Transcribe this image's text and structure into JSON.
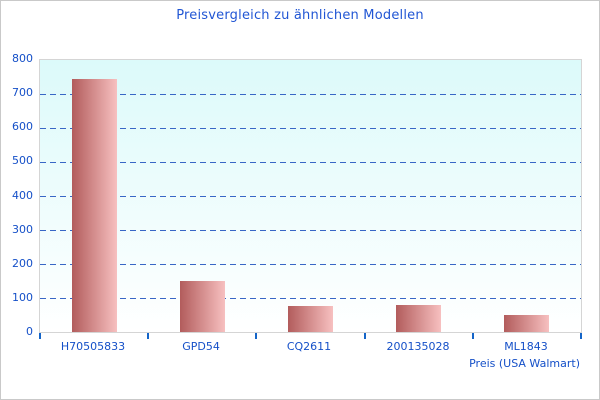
{
  "window": {
    "background": "#ffffff",
    "border_color": "#c9c9c9"
  },
  "chart_data": {
    "type": "bar",
    "title": "Preisvergleich zu ähnlichen Modellen",
    "categories": [
      "H70505833",
      "GPD54",
      "CQ2611",
      "200135028",
      "ML1843"
    ],
    "values": [
      745,
      150,
      75,
      80,
      50
    ],
    "xlabel": "Preis (USA Walmart)",
    "ylabel": "",
    "ylim": [
      0,
      800
    ],
    "ytick_step": 100,
    "ytick_labels": [
      "0",
      "100",
      "200",
      "300",
      "400",
      "500",
      "600",
      "700",
      "800"
    ],
    "grid": "horizontal-dashed",
    "legend": "none",
    "colors": {
      "title_text": "#2156d4",
      "axis_text": "#1550c8",
      "gridline": "#3866c6",
      "tick": "#1565c8",
      "plot_border": "#d5d5d5",
      "plot_bg_top": "#dcfafa",
      "plot_bg_bottom": "#ffffff",
      "bar_gradient_left": "#b25c5c",
      "bar_gradient_right": "#f7c0c0"
    }
  }
}
